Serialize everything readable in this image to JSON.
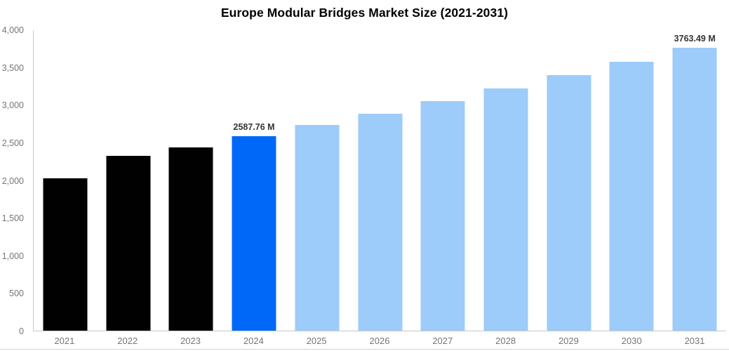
{
  "page": {
    "title": "Europe Modular Bridges Market Size (2021-2031)"
  },
  "chart_data": {
    "type": "bar",
    "title": "Europe Modular Bridges Market Size (2021-2031)",
    "xlabel": "",
    "ylabel": "",
    "categories": [
      "2021",
      "2022",
      "2023",
      "2024",
      "2025",
      "2026",
      "2027",
      "2028",
      "2029",
      "2030",
      "2031"
    ],
    "values": [
      2025,
      2330,
      2435,
      2587.76,
      2740,
      2890,
      3055,
      3225,
      3400,
      3580,
      3763.49
    ],
    "point_labels": [
      null,
      null,
      null,
      "2587.76 M",
      null,
      null,
      null,
      null,
      null,
      null,
      "3763.49 M"
    ],
    "bar_colors": [
      "#010101",
      "#010101",
      "#010101",
      "#0068f8",
      "#9dcbfa",
      "#9dcbfa",
      "#9dcbfa",
      "#9dcbfa",
      "#9dcbfa",
      "#9dcbfa",
      "#9dcbfa"
    ],
    "color_roles": {
      "historical": "#010101",
      "highlight_current": "#0068f8",
      "forecast": "#9dcbfa"
    },
    "yticks": [
      "0",
      "500",
      "1,000",
      "1,500",
      "2,000",
      "2,500",
      "3,000",
      "3,500",
      "4,000"
    ],
    "ylim": [
      0,
      4000
    ],
    "grid": false,
    "legend_position": "none",
    "axis_line_color": "#c9c9c9",
    "tick_label_color": "#757575",
    "data_label_color": "#333333",
    "unit_suffix": "M"
  }
}
